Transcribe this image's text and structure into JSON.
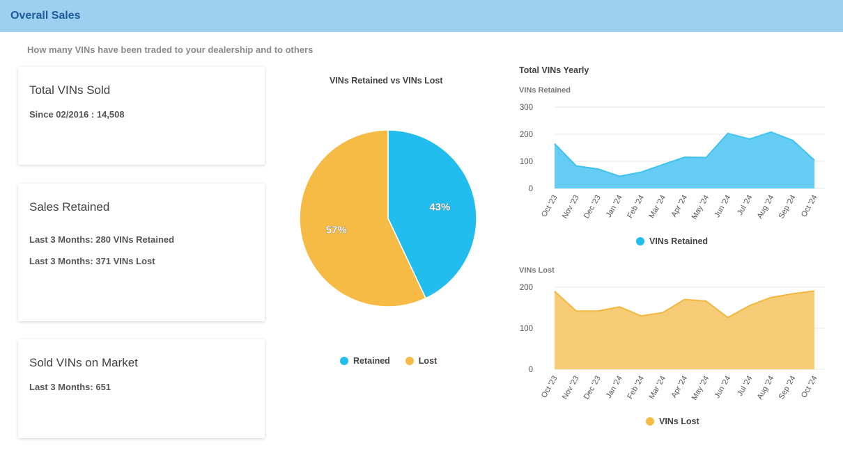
{
  "header": {
    "title": "Overall Sales"
  },
  "subtitle": "How many VINs have been traded to your dealership and to others",
  "cards": {
    "total_sold": {
      "title": "Total VINs Sold",
      "line1": "Since 02/2016 : 14,508"
    },
    "sales_retained": {
      "title": "Sales Retained",
      "line1": "Last 3 Months: 280 VINs Retained",
      "line2": "Last 3 Months: 371 VINs Lost"
    },
    "sold_on_market": {
      "title": "Sold VINs on Market",
      "line1": "Last 3 Months: 651"
    }
  },
  "colors": {
    "retained": "#22bdef",
    "lost": "#f5bb45",
    "retained_fill": "#65cdf4",
    "lost_fill": "#f6cd76",
    "header": "#9dcff1"
  },
  "chart_data": [
    {
      "type": "pie",
      "title": "VINs Retained vs VINs Lost",
      "slices": [
        {
          "label": "Retained",
          "value": 43,
          "display": "43%",
          "color": "#22bdef"
        },
        {
          "label": "Lost",
          "value": 57,
          "display": "57%",
          "color": "#f5bb45"
        }
      ],
      "legend": [
        "Retained",
        "Lost"
      ],
      "legend_position": "bottom"
    },
    {
      "type": "area",
      "title": "Total VINs Yearly",
      "series_label": "VINs Retained",
      "x": [
        "Oct '23",
        "Nov '23",
        "Dec '23",
        "Jan '24",
        "Feb '24",
        "Mar '24",
        "Apr '24",
        "May '24",
        "Jun '24",
        "Jul '24",
        "Aug '24",
        "Sep '24",
        "Oct '24"
      ],
      "series": [
        {
          "name": "VINs Retained",
          "values": [
            165,
            83,
            72,
            45,
            60,
            88,
            115,
            114,
            203,
            182,
            208,
            177,
            104
          ],
          "color": "#65cdf4"
        }
      ],
      "ylim": [
        0,
        300
      ],
      "yticks": [
        "300",
        "200",
        "100",
        "0"
      ],
      "legend_position": "bottom",
      "grid": true
    },
    {
      "type": "area",
      "series_label": "VINs Lost",
      "x": [
        "Oct '23",
        "Nov '23",
        "Dec '23",
        "Jan '24",
        "Feb '24",
        "Mar '24",
        "Apr '24",
        "May '24",
        "Jun '24",
        "Jul '24",
        "Aug '24",
        "Sep '24",
        "Oct '24"
      ],
      "series": [
        {
          "name": "VINs Lost",
          "values": [
            190,
            142,
            142,
            152,
            130,
            138,
            170,
            166,
            126,
            155,
            175,
            184,
            191
          ],
          "color": "#f6cd76"
        }
      ],
      "ylim": [
        0,
        200
      ],
      "yticks": [
        "200",
        "100",
        "0"
      ],
      "legend_position": "bottom",
      "grid": true
    }
  ]
}
